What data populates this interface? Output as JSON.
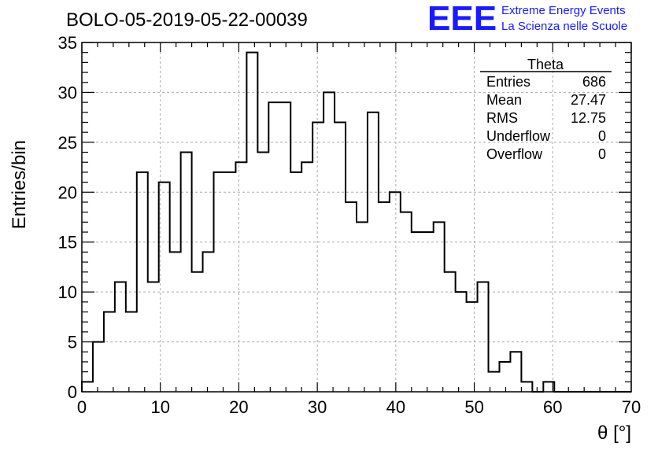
{
  "header": {
    "run_title": "BOLO-05-2019-05-22-00039",
    "logo_text": "EEE",
    "org_line1": "Extreme Energy Events",
    "org_line2": "La Scienza nelle Scuole"
  },
  "colors": {
    "logo_blue": "#1a1aff",
    "histogram_line": "#000000",
    "grid": "#aaaaaa"
  },
  "stats": {
    "title": "Theta",
    "rows": [
      {
        "label": "Entries",
        "value": "686"
      },
      {
        "label": "Mean",
        "value": "27.47"
      },
      {
        "label": "RMS",
        "value": "12.75"
      },
      {
        "label": "Underflow",
        "value": "0"
      },
      {
        "label": "Overflow",
        "value": "0"
      }
    ]
  },
  "chart_data": {
    "type": "bar",
    "style": "step-histogram",
    "xlabel": "θ [°]",
    "ylabel": "Entries/bin",
    "xlim": [
      0,
      70
    ],
    "ylim": [
      0,
      35
    ],
    "grid": true,
    "bin_width": 1.4,
    "x_ticks": [
      0,
      10,
      20,
      30,
      40,
      50,
      60,
      70
    ],
    "y_ticks": [
      0,
      5,
      10,
      15,
      20,
      25,
      30,
      35
    ],
    "values": [
      1,
      5,
      8,
      11,
      8,
      22,
      11,
      21,
      14,
      24,
      12,
      14,
      22,
      22,
      23,
      34,
      24,
      29,
      29,
      22,
      23,
      27,
      30,
      27,
      19,
      17,
      28,
      19,
      20,
      18,
      16,
      16,
      17,
      12,
      10,
      9,
      11,
      2,
      3,
      4,
      1,
      0,
      1,
      0,
      0,
      0,
      0,
      0,
      0,
      0
    ]
  }
}
